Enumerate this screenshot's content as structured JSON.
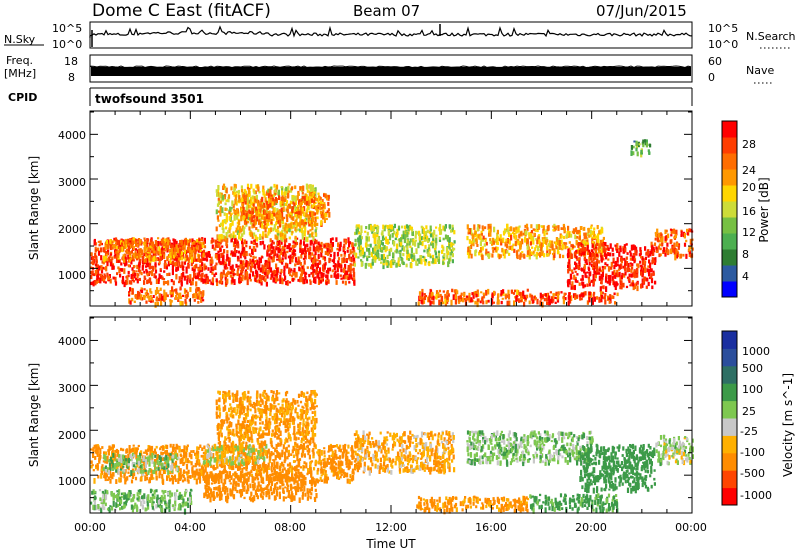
{
  "header": {
    "station": "Dome C East (fitACF)",
    "beam": "Beam 07",
    "date": "07/Jun/2015"
  },
  "colors": {
    "scale_power": [
      "#0000ff",
      "#2c5aa0",
      "#2e7d32",
      "#4caf50",
      "#76c043",
      "#cddc39",
      "#ffd600",
      "#ff9800",
      "#ff6d00",
      "#ff3d00",
      "#ff0000"
    ],
    "scale_velocity": [
      "#ff0000",
      "#ff4500",
      "#ff8c00",
      "#ffb000",
      "#c8c8c8",
      "#7ec850",
      "#3c9a48",
      "#2e6f64",
      "#2b4e9c",
      "#1a2fa0"
    ],
    "ground_scatter": "#bdbdbd"
  },
  "chart_data": [
    {
      "type": "line",
      "panel": "noise",
      "left_label": "N.Sky",
      "right_label": "N.Search",
      "left_ticks": [
        "10^5",
        "10^0"
      ],
      "right_ticks": [
        "10^5",
        "10^0"
      ],
      "ylim": [
        0,
        5
      ],
      "note": "log10 sky noise"
    },
    {
      "type": "line",
      "panel": "frequency",
      "left_label": "Freq.",
      "left_unit": "[MHz]",
      "right_label": "Nave",
      "left_ticks": [
        "18",
        "8"
      ],
      "right_ticks": [
        "60",
        "0"
      ],
      "ylim": [
        8,
        18
      ]
    },
    {
      "type": "table",
      "panel": "cpid",
      "label": "CPID",
      "value": "twofsound 3501"
    },
    {
      "type": "heatmap",
      "panel": "power",
      "ylabel": "Slant Range [km]",
      "yticks": [
        "4000",
        "3000",
        "2000",
        "1000"
      ],
      "ylim": [
        180,
        4500
      ],
      "xlim": [
        "00:00",
        "24:00"
      ],
      "colorbar_label": "Power [dB]",
      "colorbar_ticks": [
        "28",
        "24",
        "20",
        "16",
        "12",
        "8",
        "4"
      ],
      "clim": [
        0,
        30
      ],
      "regions": [
        {
          "t": [
            0.0,
            10.5
          ],
          "r": [
            700,
            1700
          ],
          "level": 27
        },
        {
          "t": [
            0.5,
            4.5
          ],
          "r": [
            1200,
            1700
          ],
          "level": 22
        },
        {
          "t": [
            5.0,
            9.0
          ],
          "r": [
            1700,
            2900
          ],
          "level": 18
        },
        {
          "t": [
            6.0,
            9.5
          ],
          "r": [
            2000,
            2700
          ],
          "level": 22
        },
        {
          "t": [
            1.5,
            4.5
          ],
          "r": [
            250,
            600
          ],
          "level": 24
        },
        {
          "t": [
            10.5,
            14.5
          ],
          "r": [
            1100,
            2000
          ],
          "level": 14
        },
        {
          "t": [
            13.0,
            17.5
          ],
          "r": [
            250,
            550
          ],
          "level": 24
        },
        {
          "t": [
            15.0,
            20.5
          ],
          "r": [
            1300,
            2000
          ],
          "level": 20
        },
        {
          "t": [
            19.0,
            22.5
          ],
          "r": [
            600,
            1600
          ],
          "level": 28
        },
        {
          "t": [
            17.5,
            21.0
          ],
          "r": [
            250,
            500
          ],
          "level": 26
        },
        {
          "t": [
            22.5,
            24.0
          ],
          "r": [
            1300,
            1900
          ],
          "level": 24
        },
        {
          "t": [
            21.5,
            22.3
          ],
          "r": [
            3600,
            3900
          ],
          "level": 10
        }
      ]
    },
    {
      "type": "heatmap",
      "panel": "velocity",
      "ylabel": "Slant Range [km]",
      "yticks": [
        "4000",
        "3000",
        "2000",
        "1000"
      ],
      "ylim": [
        180,
        4500
      ],
      "xlabel": "Time UT",
      "xticks": [
        "00:00",
        "04:00",
        "08:00",
        "12:00",
        "16:00",
        "20:00",
        "00:00"
      ],
      "xlim": [
        "00:00",
        "24:00"
      ],
      "colorbar_label": "Velocity [m s^-1]",
      "colorbar_ticks": [
        "1000",
        "500",
        "100",
        "25",
        "-25",
        "-100",
        "-500",
        "-1000"
      ],
      "clim": [
        -1000,
        1000
      ],
      "regions": [
        {
          "t": [
            0.0,
            10.5
          ],
          "r": [
            900,
            1700
          ],
          "level": -150
        },
        {
          "t": [
            0.5,
            3.5
          ],
          "r": [
            1100,
            1500
          ],
          "level": 60
        },
        {
          "t": [
            4.5,
            9.0
          ],
          "r": [
            500,
            1100
          ],
          "level": -200
        },
        {
          "t": [
            4.5,
            7.0
          ],
          "r": [
            1300,
            1700
          ],
          "level": 0
        },
        {
          "t": [
            5.0,
            9.0
          ],
          "r": [
            1700,
            2900
          ],
          "level": -120
        },
        {
          "t": [
            0.0,
            4.0
          ],
          "r": [
            250,
            700
          ],
          "level": 80
        },
        {
          "t": [
            10.5,
            14.5
          ],
          "r": [
            1100,
            2000
          ],
          "level": -80
        },
        {
          "t": [
            13.0,
            17.5
          ],
          "r": [
            250,
            550
          ],
          "level": -150
        },
        {
          "t": [
            15.0,
            20.0
          ],
          "r": [
            1300,
            2000
          ],
          "level": 60
        },
        {
          "t": [
            19.5,
            22.5
          ],
          "r": [
            700,
            1700
          ],
          "level": 400
        },
        {
          "t": [
            17.5,
            21.0
          ],
          "r": [
            250,
            600
          ],
          "level": 150
        },
        {
          "t": [
            22.5,
            24.0
          ],
          "r": [
            1300,
            1900
          ],
          "level": 30
        }
      ]
    }
  ]
}
